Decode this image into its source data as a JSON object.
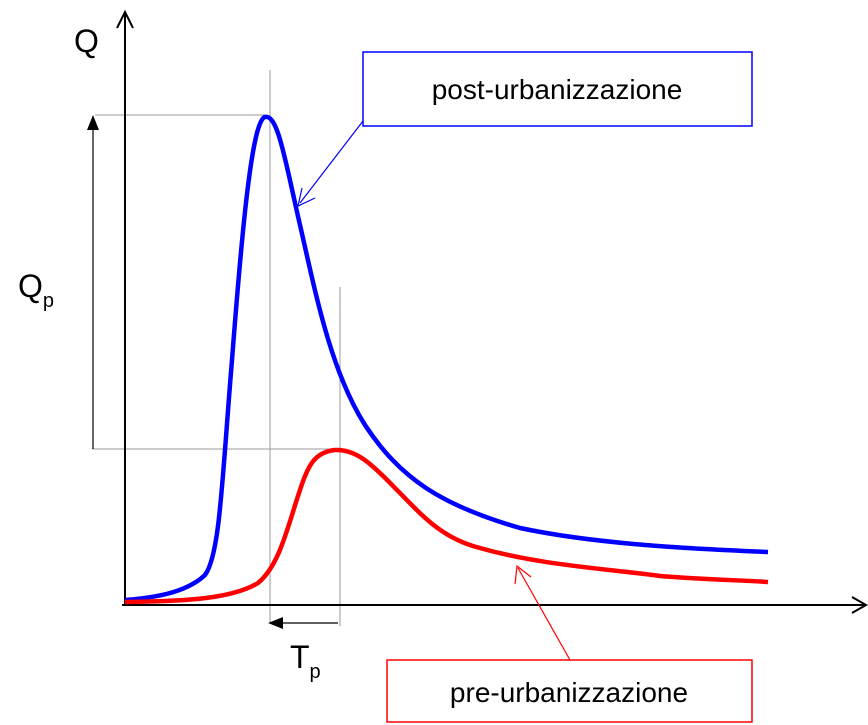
{
  "axes": {
    "y_label": "Q"
  },
  "annotations": {
    "peak_flow": {
      "symbol": "Q",
      "subscript": "p"
    },
    "time_to_peak": {
      "symbol": "T",
      "subscript": "p"
    }
  },
  "curves": [
    {
      "label": "post-urbanizzazione"
    },
    {
      "label": "pre-urbanizzazione"
    }
  ]
}
